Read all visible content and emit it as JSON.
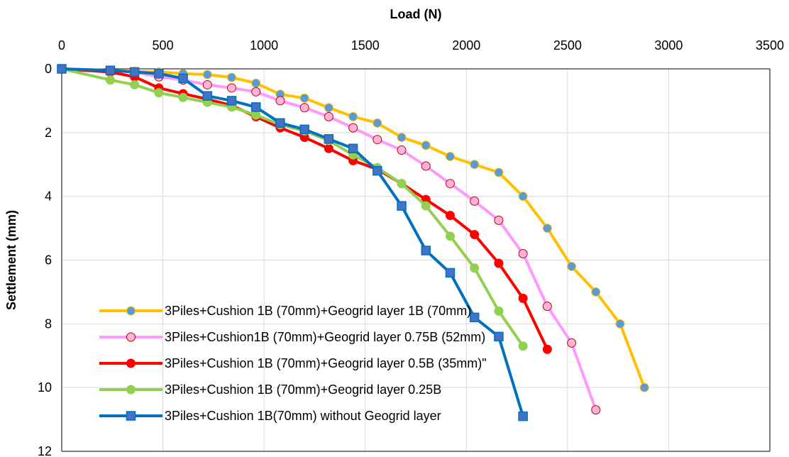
{
  "chart_data": {
    "type": "line",
    "xlabel": "Load (N)",
    "ylabel": "Settlement (mm)",
    "xlim": [
      0,
      3500
    ],
    "ylim": [
      0,
      12
    ],
    "x_ticks": [
      0,
      500,
      1000,
      1500,
      2000,
      2500,
      3000,
      3500
    ],
    "y_ticks": [
      0,
      2,
      4,
      6,
      8,
      10,
      12
    ],
    "x_axis_position": "top",
    "y_axis_inverted": true,
    "grid": true,
    "legend_position": "bottom-left",
    "series": [
      {
        "name": "3Piles+Cushion 1B (70mm)+Geogrid layer 1B (70mm)",
        "color": "#FFC000",
        "marker_fill": "#5B9BD5",
        "marker_edge": "#FFC000",
        "marker": "circle",
        "x": [
          0,
          240,
          360,
          480,
          600,
          720,
          840,
          960,
          1080,
          1200,
          1320,
          1440,
          1560,
          1680,
          1800,
          1920,
          2040,
          2160,
          2280,
          2400,
          2520,
          2640,
          2760,
          2880
        ],
        "y": [
          0,
          0.05,
          0.08,
          0.1,
          0.15,
          0.18,
          0.27,
          0.45,
          0.8,
          0.92,
          1.22,
          1.5,
          1.7,
          2.15,
          2.4,
          2.75,
          3.0,
          3.25,
          4.0,
          5.0,
          6.2,
          7.0,
          8.0,
          10.0
        ]
      },
      {
        "name": "3Piles+Cushion1B (70mm)+Geogrid layer 0.75B (52mm)",
        "color": "#FF99FF",
        "marker_fill": "#FFB3D9",
        "marker_edge": "#C00000",
        "marker": "circle",
        "x": [
          0,
          240,
          360,
          480,
          600,
          720,
          840,
          960,
          1080,
          1200,
          1320,
          1440,
          1560,
          1680,
          1800,
          1920,
          2040,
          2160,
          2280,
          2400,
          2520,
          2640
        ],
        "y": [
          0,
          0.05,
          0.1,
          0.25,
          0.35,
          0.5,
          0.6,
          0.72,
          1.0,
          1.22,
          1.5,
          1.85,
          2.22,
          2.55,
          3.05,
          3.6,
          4.15,
          4.75,
          5.8,
          7.45,
          8.6,
          10.7
        ]
      },
      {
        "name": "3Piles+Cushion 1B (70mm)+Geogrid layer 0.5B (35mm)\"",
        "color": "#FF0000",
        "marker_fill": "#FF0000",
        "marker_edge": "#FF0000",
        "marker": "circle",
        "x": [
          0,
          240,
          360,
          480,
          600,
          720,
          840,
          960,
          1080,
          1200,
          1320,
          1440,
          1560,
          1680,
          1800,
          1920,
          2040,
          2160,
          2280,
          2400
        ],
        "y": [
          0,
          0.1,
          0.25,
          0.6,
          0.78,
          0.95,
          1.15,
          1.5,
          1.85,
          2.15,
          2.5,
          2.88,
          3.15,
          3.6,
          4.1,
          4.6,
          5.2,
          6.1,
          7.2,
          8.8
        ]
      },
      {
        "name": "3Piles+Cushion 1B (70mm)+Geogrid layer 0.25B",
        "color": "#92D050",
        "marker_fill": "#92D050",
        "marker_edge": "#92D050",
        "marker": "circle",
        "x": [
          0,
          240,
          360,
          480,
          600,
          720,
          840,
          960,
          1080,
          1200,
          1320,
          1440,
          1560,
          1680,
          1800,
          1920,
          2040,
          2160,
          2280
        ],
        "y": [
          0,
          0.35,
          0.5,
          0.75,
          0.9,
          1.05,
          1.2,
          1.45,
          1.75,
          1.95,
          2.25,
          2.7,
          3.1,
          3.6,
          4.3,
          5.25,
          6.25,
          7.6,
          8.7
        ]
      },
      {
        "name": "3Piles+Cushion 1B(70mm) without Geogrid layer",
        "color": "#0070C0",
        "marker_fill": "#4472C4",
        "marker_edge": "#0070C0",
        "marker": "square",
        "x": [
          0,
          240,
          360,
          480,
          600,
          720,
          840,
          960,
          1080,
          1200,
          1320,
          1440,
          1560,
          1680,
          1800,
          1920,
          2040,
          2160,
          2280
        ],
        "y": [
          0,
          0.05,
          0.1,
          0.15,
          0.3,
          0.85,
          1.0,
          1.2,
          1.7,
          1.9,
          2.2,
          2.5,
          3.2,
          4.3,
          5.7,
          6.4,
          7.8,
          8.4,
          10.9
        ]
      }
    ]
  }
}
